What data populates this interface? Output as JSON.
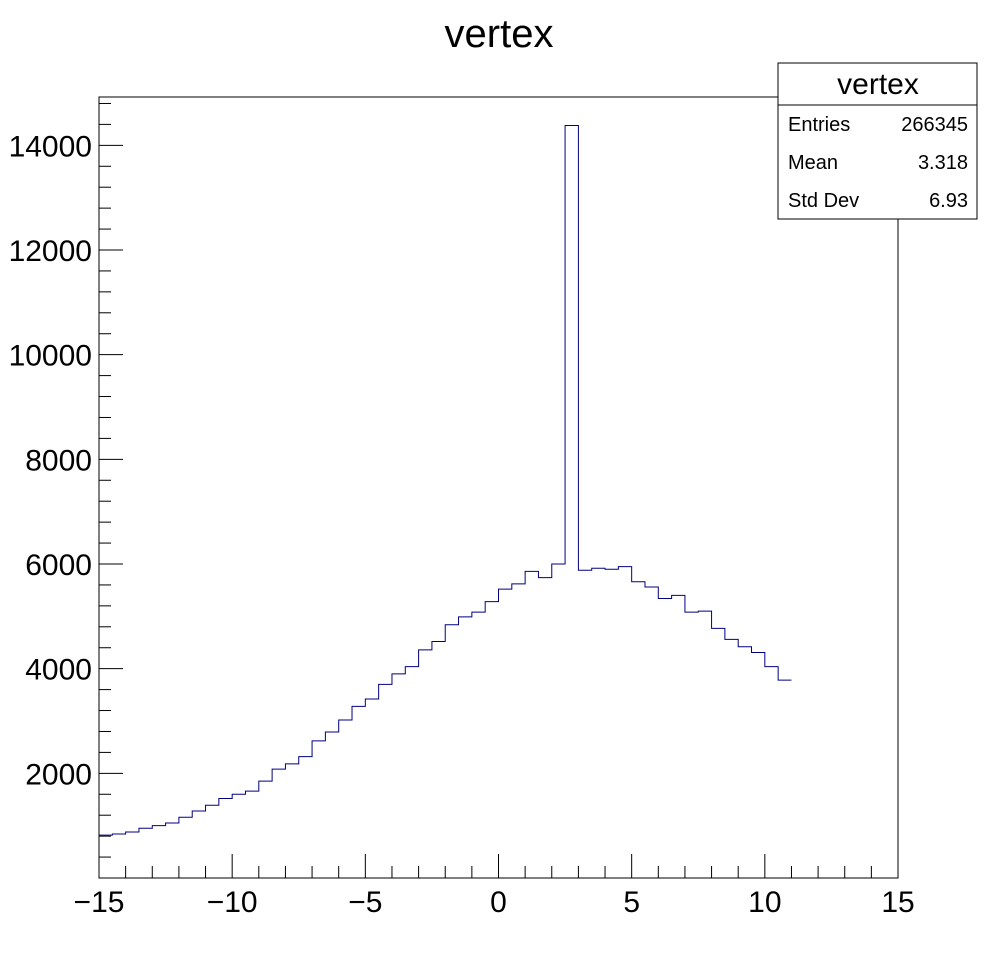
{
  "chart_data": {
    "type": "histogram",
    "title": "vertex",
    "xlabel": "",
    "ylabel": "",
    "xlim": [
      -15,
      15
    ],
    "ylim": [
      0,
      15000
    ],
    "x_ticks": [
      -15,
      -10,
      -5,
      0,
      5,
      10,
      15
    ],
    "y_ticks": [
      2000,
      4000,
      6000,
      8000,
      10000,
      12000,
      14000
    ],
    "line_color": "#000080",
    "bin_width": 0.5,
    "bin_edges_start": -15,
    "values": [
      820,
      840,
      880,
      950,
      1000,
      1050,
      1160,
      1280,
      1390,
      1520,
      1600,
      1660,
      1850,
      2080,
      2180,
      2320,
      2620,
      2790,
      3020,
      3280,
      3420,
      3700,
      3900,
      4040,
      4360,
      4520,
      4840,
      4990,
      5080,
      5280,
      5520,
      5620,
      5860,
      5740,
      6000,
      14380,
      5880,
      5920,
      5900,
      5950,
      5660,
      5560,
      5340,
      5400,
      5080,
      5100,
      4770,
      4560,
      4420,
      4310,
      4040,
      3780
    ],
    "stats_box": {
      "title": "vertex",
      "rows": [
        {
          "label": "Entries",
          "value": "266345"
        },
        {
          "label": "Mean",
          "value": "3.318"
        },
        {
          "label": "Std Dev",
          "value": "6.93"
        }
      ]
    }
  }
}
